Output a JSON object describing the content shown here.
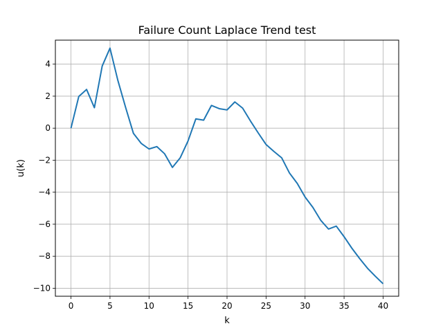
{
  "chart_data": {
    "type": "line",
    "title": "Failure Count Laplace Trend test",
    "xlabel": "k",
    "ylabel": "u(k)",
    "xlim": [
      -2,
      42
    ],
    "ylim": [
      -10.5,
      5.5
    ],
    "grid": true,
    "line_color": "#1f77b4",
    "x_ticks": [
      0,
      5,
      10,
      15,
      20,
      25,
      30,
      35,
      40
    ],
    "y_ticks": [
      -10,
      -8,
      -6,
      -4,
      -2,
      0,
      2,
      4
    ],
    "x_tick_labels": [
      "0",
      "5",
      "10",
      "15",
      "20",
      "25",
      "30",
      "35",
      "40"
    ],
    "y_tick_labels": [
      "−10",
      "−8",
      "−6",
      "−4",
      "−2",
      "0",
      "2",
      "4"
    ],
    "series": [
      {
        "x": [
          0,
          1,
          2,
          3,
          4,
          5,
          6,
          7,
          8,
          9,
          10,
          11,
          12,
          13,
          14,
          15,
          16,
          17,
          18,
          19,
          20,
          21,
          22,
          23,
          24,
          25,
          26,
          27,
          28,
          29,
          30,
          31,
          32,
          33,
          34,
          35,
          36,
          37,
          38,
          39,
          40
        ],
        "values": [
          0.0,
          1.98,
          2.42,
          1.28,
          3.88,
          5.0,
          3.0,
          1.3,
          -0.32,
          -0.95,
          -1.3,
          -1.15,
          -1.6,
          -2.45,
          -1.85,
          -0.8,
          0.58,
          0.5,
          1.42,
          1.22,
          1.14,
          1.64,
          1.25,
          0.45,
          -0.3,
          -1.02,
          -1.45,
          -1.85,
          -2.8,
          -3.45,
          -4.3,
          -4.95,
          -5.75,
          -6.3,
          -6.12,
          -6.78,
          -7.5,
          -8.15,
          -8.75,
          -9.25,
          -9.72
        ]
      }
    ]
  }
}
